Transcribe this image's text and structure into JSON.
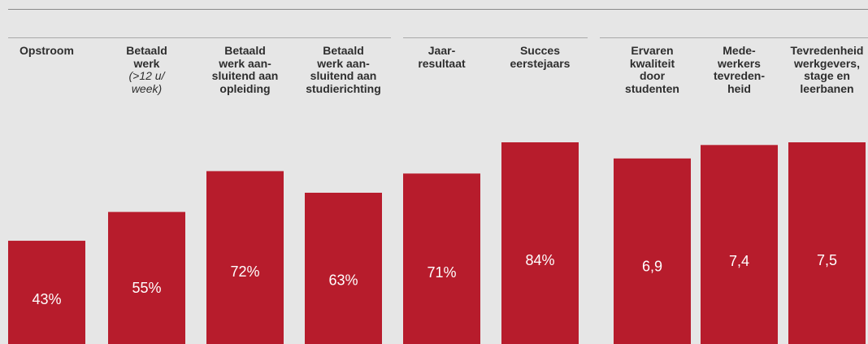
{
  "chart_data": {
    "type": "bar",
    "categories": [
      {
        "label": "Opstroom",
        "sublabel": ""
      },
      {
        "label": "Betaald\nwerk",
        "sublabel": "(>12 u/\nweek)"
      },
      {
        "label": "Betaald\nwerk aan-\nsluitend aan\nopleiding",
        "sublabel": ""
      },
      {
        "label": "Betaald\nwerk aan-\nsluitend aan\nstudierichting",
        "sublabel": ""
      },
      {
        "label": "Jaar-\nresultaat",
        "sublabel": ""
      },
      {
        "label": "Succes\neerstejaars",
        "sublabel": ""
      },
      {
        "label": "Ervaren\nkwaliteit\ndoor\nstudenten",
        "sublabel": ""
      },
      {
        "label": "Mede-\nwerkers\ntevreden-\nheid",
        "sublabel": ""
      },
      {
        "label": "Tevredenheid\nwerkgevers,\nstage en\nleerbanen",
        "sublabel": ""
      }
    ],
    "values": [
      43,
      55,
      72,
      63,
      71,
      84,
      6.9,
      7.4,
      7.5
    ],
    "scales": [
      "percent",
      "percent",
      "percent",
      "percent",
      "percent",
      "percent",
      "grade",
      "grade",
      "grade"
    ],
    "data_labels": [
      "43%",
      "55%",
      "72%",
      "63%",
      "71%",
      "84%",
      "6,9",
      "7,4",
      "7,5"
    ],
    "groups": [
      [
        0,
        3
      ],
      [
        4,
        5
      ],
      [
        6,
        8
      ]
    ],
    "grid": false,
    "legend": "none"
  },
  "colors": {
    "bar": "#b71c2c",
    "label": "#ffffff",
    "header": "#2e2e2e",
    "background": "#e6e6e6"
  }
}
